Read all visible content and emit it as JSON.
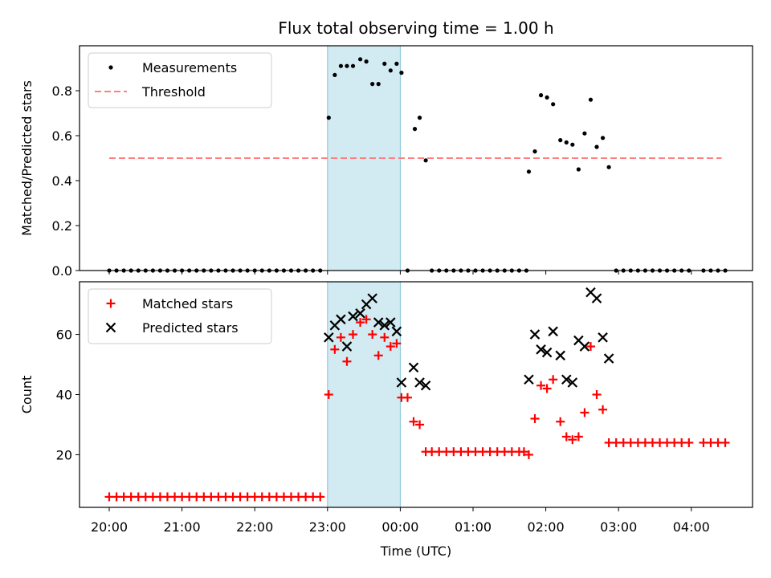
{
  "chart_data": {
    "title": "Flux total observing time = 1.00 h",
    "xlabel": "Time (UTC)",
    "x_tick_labels": [
      "20:00",
      "21:00",
      "22:00",
      "23:00",
      "00:00",
      "01:00",
      "02:00",
      "03:00",
      "04:00"
    ],
    "highlight_span": {
      "start": "23:00",
      "end": "00:00",
      "color": "#add8e6"
    },
    "panels": [
      {
        "type": "scatter",
        "ylabel": "Matched/Predicted stars",
        "ylim": [
          0,
          1.0
        ],
        "y_ticks": [
          0.0,
          0.2,
          0.4,
          0.6,
          0.8
        ],
        "y_tick_labels": [
          "0.0",
          "0.2",
          "0.4",
          "0.6",
          "0.8"
        ],
        "legend_position": "top-left",
        "series": [
          {
            "name": "Measurements",
            "marker": "dot",
            "color": "#000000",
            "points": [
              [
                "20:00",
                0
              ],
              [
                "20:06",
                0
              ],
              [
                "20:12",
                0
              ],
              [
                "20:18",
                0
              ],
              [
                "20:24",
                0
              ],
              [
                "20:30",
                0
              ],
              [
                "20:36",
                0
              ],
              [
                "20:42",
                0
              ],
              [
                "20:48",
                0
              ],
              [
                "20:54",
                0
              ],
              [
                "21:00",
                0
              ],
              [
                "21:06",
                0
              ],
              [
                "21:12",
                0
              ],
              [
                "21:18",
                0
              ],
              [
                "21:24",
                0
              ],
              [
                "21:30",
                0
              ],
              [
                "21:36",
                0
              ],
              [
                "21:42",
                0
              ],
              [
                "21:48",
                0
              ],
              [
                "21:54",
                0
              ],
              [
                "22:00",
                0
              ],
              [
                "22:06",
                0
              ],
              [
                "22:12",
                0
              ],
              [
                "22:18",
                0
              ],
              [
                "22:24",
                0
              ],
              [
                "22:30",
                0
              ],
              [
                "22:36",
                0
              ],
              [
                "22:42",
                0
              ],
              [
                "22:48",
                0
              ],
              [
                "22:54",
                0
              ],
              [
                "23:01",
                0.68
              ],
              [
                "23:06",
                0.87
              ],
              [
                "23:11",
                0.91
              ],
              [
                "23:16",
                0.91
              ],
              [
                "23:21",
                0.91
              ],
              [
                "23:27",
                0.94
              ],
              [
                "23:32",
                0.93
              ],
              [
                "23:37",
                0.83
              ],
              [
                "23:42",
                0.83
              ],
              [
                "23:47",
                0.92
              ],
              [
                "23:52",
                0.89
              ],
              [
                "23:57",
                0.92
              ],
              [
                "00:01",
                0.88
              ],
              [
                "00:06",
                0
              ],
              [
                "00:12",
                0.63
              ],
              [
                "00:16",
                0.68
              ],
              [
                "00:21",
                0.49
              ],
              [
                "00:26",
                0
              ],
              [
                "00:32",
                0
              ],
              [
                "00:38",
                0
              ],
              [
                "00:44",
                0
              ],
              [
                "00:50",
                0
              ],
              [
                "00:56",
                0
              ],
              [
                "01:02",
                0
              ],
              [
                "01:08",
                0
              ],
              [
                "01:14",
                0
              ],
              [
                "01:20",
                0
              ],
              [
                "01:26",
                0
              ],
              [
                "01:32",
                0
              ],
              [
                "01:38",
                0
              ],
              [
                "01:44",
                0
              ],
              [
                "01:46",
                0.44
              ],
              [
                "01:51",
                0.53
              ],
              [
                "01:56",
                0.78
              ],
              [
                "02:01",
                0.77
              ],
              [
                "02:06",
                0.74
              ],
              [
                "02:12",
                0.58
              ],
              [
                "02:17",
                0.57
              ],
              [
                "02:22",
                0.56
              ],
              [
                "02:27",
                0.45
              ],
              [
                "02:32",
                0.61
              ],
              [
                "02:37",
                0.76
              ],
              [
                "02:42",
                0.55
              ],
              [
                "02:47",
                0.59
              ],
              [
                "02:52",
                0.46
              ],
              [
                "02:58",
                0
              ],
              [
                "03:04",
                0
              ],
              [
                "03:10",
                0
              ],
              [
                "03:16",
                0
              ],
              [
                "03:22",
                0
              ],
              [
                "03:28",
                0
              ],
              [
                "03:34",
                0
              ],
              [
                "03:40",
                0
              ],
              [
                "03:46",
                0
              ],
              [
                "03:52",
                0
              ],
              [
                "03:58",
                0
              ],
              [
                "04:10",
                0
              ],
              [
                "04:16",
                0
              ],
              [
                "04:22",
                0
              ],
              [
                "04:28",
                0
              ]
            ]
          },
          {
            "name": "Threshold",
            "marker": "dashed-line",
            "color": "#ff7f7f",
            "points": [
              [
                "20:00",
                0.5
              ],
              [
                "04:25",
                0.5
              ]
            ]
          }
        ]
      },
      {
        "type": "scatter",
        "ylabel": "Count",
        "ylim": [
          2.5,
          77.5
        ],
        "y_ticks": [
          20,
          40,
          60
        ],
        "y_tick_labels": [
          "20",
          "40",
          "60"
        ],
        "legend_position": "top-left",
        "series": [
          {
            "name": "Matched stars",
            "marker": "plus",
            "color": "#ff0000",
            "points": [
              [
                "20:00",
                6
              ],
              [
                "20:06",
                6
              ],
              [
                "20:12",
                6
              ],
              [
                "20:18",
                6
              ],
              [
                "20:24",
                6
              ],
              [
                "20:30",
                6
              ],
              [
                "20:36",
                6
              ],
              [
                "20:42",
                6
              ],
              [
                "20:48",
                6
              ],
              [
                "20:54",
                6
              ],
              [
                "21:00",
                6
              ],
              [
                "21:06",
                6
              ],
              [
                "21:12",
                6
              ],
              [
                "21:18",
                6
              ],
              [
                "21:24",
                6
              ],
              [
                "21:30",
                6
              ],
              [
                "21:36",
                6
              ],
              [
                "21:42",
                6
              ],
              [
                "21:48",
                6
              ],
              [
                "21:54",
                6
              ],
              [
                "22:00",
                6
              ],
              [
                "22:06",
                6
              ],
              [
                "22:12",
                6
              ],
              [
                "22:18",
                6
              ],
              [
                "22:24",
                6
              ],
              [
                "22:30",
                6
              ],
              [
                "22:36",
                6
              ],
              [
                "22:42",
                6
              ],
              [
                "22:48",
                6
              ],
              [
                "22:54",
                6
              ],
              [
                "23:01",
                40
              ],
              [
                "23:06",
                55
              ],
              [
                "23:11",
                59
              ],
              [
                "23:16",
                51
              ],
              [
                "23:21",
                60
              ],
              [
                "23:27",
                64
              ],
              [
                "23:32",
                65
              ],
              [
                "23:37",
                60
              ],
              [
                "23:42",
                53
              ],
              [
                "23:47",
                59
              ],
              [
                "23:52",
                56
              ],
              [
                "23:57",
                57
              ],
              [
                "00:01",
                39
              ],
              [
                "00:06",
                39
              ],
              [
                "00:11",
                31
              ],
              [
                "00:16",
                30
              ],
              [
                "00:21",
                21
              ],
              [
                "00:26",
                21
              ],
              [
                "00:32",
                21
              ],
              [
                "00:38",
                21
              ],
              [
                "00:44",
                21
              ],
              [
                "00:50",
                21
              ],
              [
                "00:56",
                21
              ],
              [
                "01:02",
                21
              ],
              [
                "01:08",
                21
              ],
              [
                "01:14",
                21
              ],
              [
                "01:20",
                21
              ],
              [
                "01:26",
                21
              ],
              [
                "01:32",
                21
              ],
              [
                "01:38",
                21
              ],
              [
                "01:42",
                21
              ],
              [
                "01:46",
                20
              ],
              [
                "01:51",
                32
              ],
              [
                "01:56",
                43
              ],
              [
                "02:01",
                42
              ],
              [
                "02:06",
                45
              ],
              [
                "02:12",
                31
              ],
              [
                "02:17",
                26
              ],
              [
                "02:22",
                25
              ],
              [
                "02:27",
                26
              ],
              [
                "02:32",
                34
              ],
              [
                "02:37",
                56
              ],
              [
                "02:42",
                40
              ],
              [
                "02:47",
                35
              ],
              [
                "02:52",
                24
              ],
              [
                "02:58",
                24
              ],
              [
                "03:04",
                24
              ],
              [
                "03:10",
                24
              ],
              [
                "03:16",
                24
              ],
              [
                "03:22",
                24
              ],
              [
                "03:28",
                24
              ],
              [
                "03:34",
                24
              ],
              [
                "03:40",
                24
              ],
              [
                "03:46",
                24
              ],
              [
                "03:52",
                24
              ],
              [
                "03:58",
                24
              ],
              [
                "04:10",
                24
              ],
              [
                "04:16",
                24
              ],
              [
                "04:22",
                24
              ],
              [
                "04:28",
                24
              ]
            ]
          },
          {
            "name": "Predicted stars",
            "marker": "x",
            "color": "#000000",
            "points": [
              [
                "23:01",
                59
              ],
              [
                "23:06",
                63
              ],
              [
                "23:11",
                65
              ],
              [
                "23:16",
                56
              ],
              [
                "23:21",
                66
              ],
              [
                "23:27",
                67
              ],
              [
                "23:32",
                70
              ],
              [
                "23:37",
                72
              ],
              [
                "23:42",
                64
              ],
              [
                "23:47",
                63
              ],
              [
                "23:52",
                64
              ],
              [
                "23:57",
                61
              ],
              [
                "00:01",
                44
              ],
              [
                "00:11",
                49
              ],
              [
                "00:16",
                44
              ],
              [
                "00:21",
                43
              ],
              [
                "01:46",
                45
              ],
              [
                "01:51",
                60
              ],
              [
                "01:56",
                55
              ],
              [
                "02:01",
                54
              ],
              [
                "02:06",
                61
              ],
              [
                "02:12",
                53
              ],
              [
                "02:17",
                45
              ],
              [
                "02:22",
                44
              ],
              [
                "02:27",
                58
              ],
              [
                "02:32",
                56
              ],
              [
                "02:37",
                74
              ],
              [
                "02:42",
                72
              ],
              [
                "02:47",
                59
              ],
              [
                "02:52",
                52
              ]
            ]
          }
        ]
      }
    ]
  }
}
